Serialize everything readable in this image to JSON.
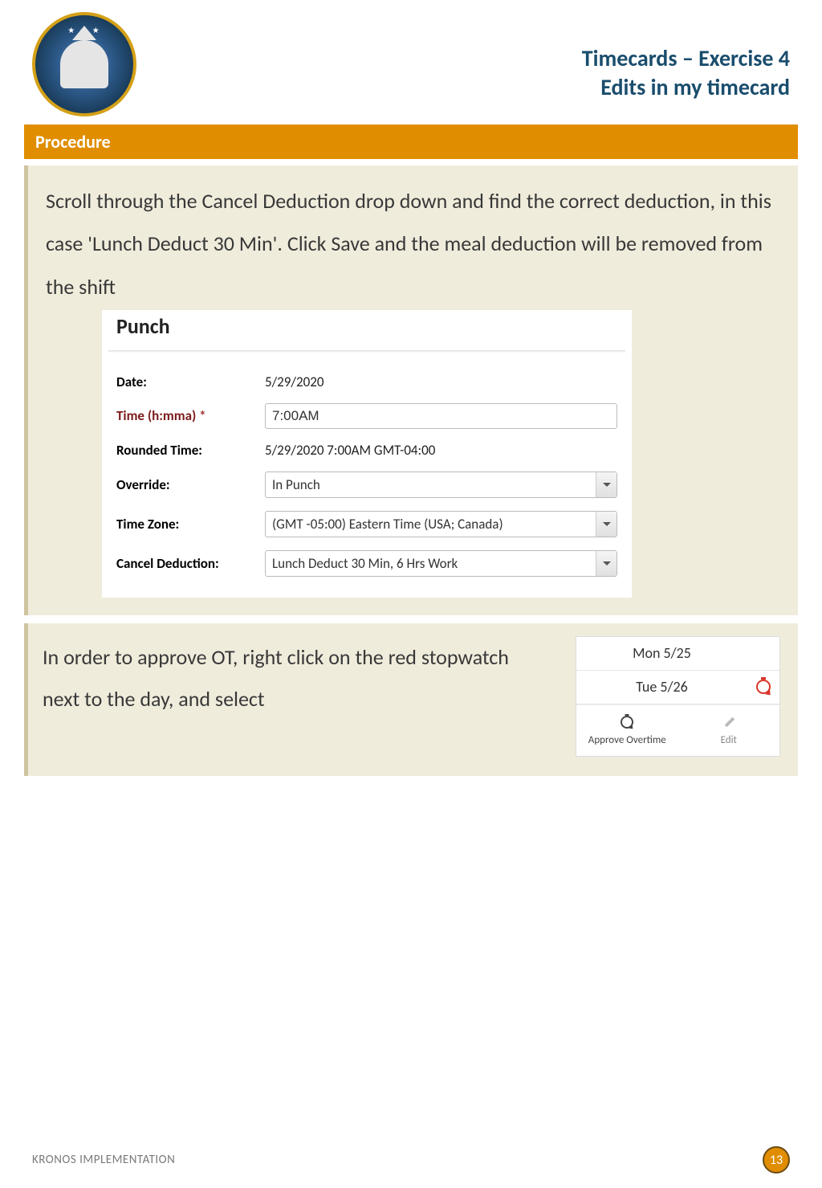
{
  "header": {
    "title_line1": "Timecards – Exercise 4",
    "title_line2": "Edits in my timecard",
    "title_color": "#1a4d6d"
  },
  "procedure_label": "Procedure",
  "procedure_bg": "#e08e00",
  "block1": {
    "instruction": "Scroll through the Cancel Deduction drop down and find the correct deduction, in this case 'Lunch Deduct 30 Min'. Click Save and the meal deduction will be removed from the shift",
    "panel_title": "Punch",
    "fields": {
      "date": {
        "label": "Date:",
        "value": "5/29/2020"
      },
      "time": {
        "label": "Time (h:mma)",
        "asterisk": "*",
        "value": "7:00AM"
      },
      "rounded": {
        "label": "Rounded Time:",
        "value": "5/29/2020 7:00AM GMT-04:00"
      },
      "override": {
        "label": "Override:",
        "value": "In Punch"
      },
      "timezone": {
        "label": "Time Zone:",
        "value": "(GMT -05:00) Eastern Time (USA; Canada)"
      },
      "cancel_deduct": {
        "label": "Cancel Deduction:",
        "value": "Lunch Deduct 30 Min, 6 Hrs Work"
      }
    }
  },
  "block2": {
    "instruction": "In order to approve OT, right click on the red stopwatch next to the day, and select",
    "days": {
      "mon": "Mon 5/25",
      "tue": "Tue 5/26"
    },
    "context_menu": {
      "approve": "Approve Overtime",
      "edit": "Edit"
    },
    "stopwatch_color": "#d9352a"
  },
  "footer": {
    "text": "KRONOS IMPLEMENTATION",
    "page_number": "13",
    "badge_bg": "#e08e00"
  },
  "colors": {
    "content_bg": "#f0ecdc",
    "content_border": "#cfc4a0",
    "body_text": "#383838"
  }
}
